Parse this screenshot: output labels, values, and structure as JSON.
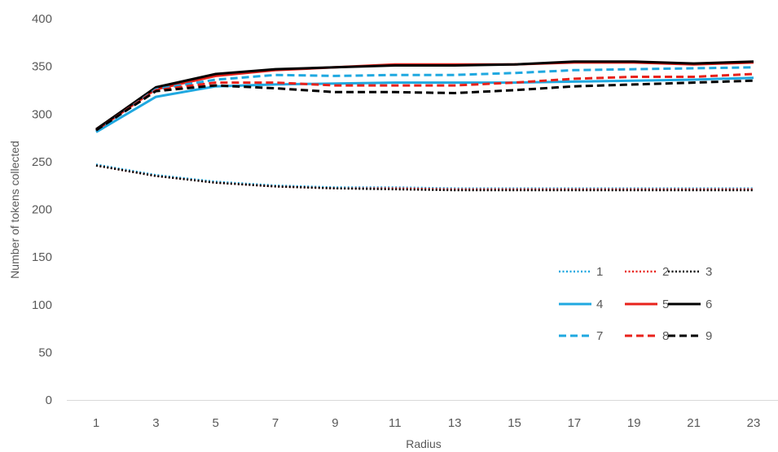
{
  "chart_data": {
    "type": "line",
    "title": "",
    "xlabel": "Radius",
    "ylabel": "Number of tokens collected",
    "x": [
      1,
      3,
      5,
      7,
      9,
      11,
      13,
      15,
      17,
      19,
      21,
      23
    ],
    "xlim": [
      1,
      23
    ],
    "ylim": [
      0,
      400
    ],
    "yticks": [
      0,
      50,
      100,
      150,
      200,
      250,
      300,
      350,
      400
    ],
    "grid": false,
    "legend_position": "lower-right",
    "series": [
      {
        "name": "1",
        "color": "#1fa8e0",
        "style": "dotted",
        "values": [
          247,
          236,
          229,
          225,
          223,
          223,
          222,
          222,
          222,
          222,
          222,
          222
        ]
      },
      {
        "name": "2",
        "color": "#e8221b",
        "style": "dotted",
        "values": [
          246,
          235,
          228,
          224,
          222,
          222,
          221,
          221,
          221,
          221,
          221,
          221
        ]
      },
      {
        "name": "3",
        "color": "#000000",
        "style": "dotted",
        "values": [
          246,
          235,
          228,
          224,
          222,
          221,
          220,
          220,
          220,
          220,
          220,
          220
        ]
      },
      {
        "name": "4",
        "color": "#1fa8e0",
        "style": "solid",
        "values": [
          281,
          318,
          329,
          331,
          332,
          333,
          333,
          333,
          334,
          335,
          336,
          338
        ]
      },
      {
        "name": "5",
        "color": "#e8221b",
        "style": "solid",
        "values": [
          283,
          326,
          340,
          346,
          349,
          352,
          352,
          352,
          354,
          354,
          352,
          354
        ]
      },
      {
        "name": "6",
        "color": "#000000",
        "style": "solid",
        "values": [
          284,
          328,
          342,
          347,
          349,
          351,
          351,
          352,
          355,
          355,
          353,
          355
        ]
      },
      {
        "name": "7",
        "color": "#1fa8e0",
        "style": "dashed",
        "values": [
          282,
          326,
          336,
          341,
          340,
          341,
          341,
          343,
          346,
          347,
          348,
          349
        ]
      },
      {
        "name": "8",
        "color": "#e8221b",
        "style": "dashed",
        "values": [
          283,
          325,
          333,
          333,
          330,
          330,
          330,
          333,
          337,
          339,
          339,
          342
        ]
      },
      {
        "name": "9",
        "color": "#000000",
        "style": "dashed",
        "values": [
          283,
          324,
          330,
          327,
          323,
          323,
          322,
          325,
          329,
          331,
          333,
          335
        ]
      }
    ]
  }
}
